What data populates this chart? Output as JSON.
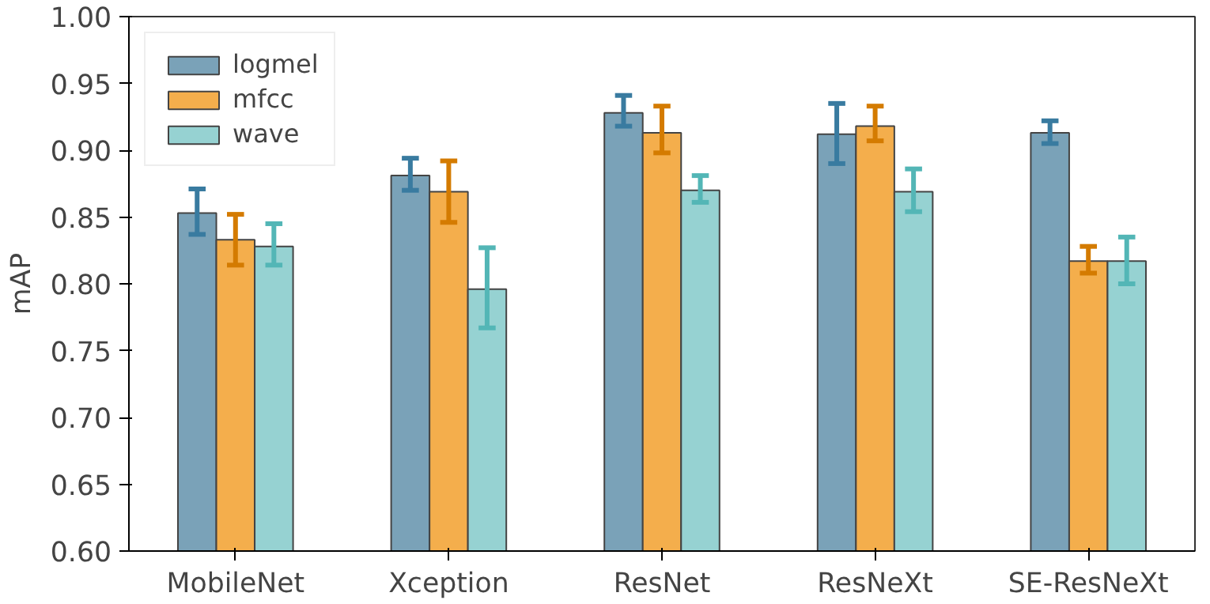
{
  "chart_data": {
    "type": "bar",
    "ylabel": "mAP",
    "categories": [
      "MobileNet",
      "Xception",
      "ResNet",
      "ResNeXt",
      "SE-ResNeXt"
    ],
    "series": [
      {
        "name": "logmel",
        "color": "#7aa2b8",
        "values": [
          0.853,
          0.881,
          0.928,
          0.912,
          0.913
        ],
        "errors": [
          [
            0.837,
            0.871
          ],
          [
            0.87,
            0.894
          ],
          [
            0.918,
            0.941
          ],
          [
            0.89,
            0.935
          ],
          [
            0.905,
            0.922
          ]
        ]
      },
      {
        "name": "mfcc",
        "color": "#f4ae4c",
        "values": [
          0.833,
          0.869,
          0.913,
          0.918,
          0.817
        ],
        "errors": [
          [
            0.814,
            0.852
          ],
          [
            0.846,
            0.892
          ],
          [
            0.898,
            0.933
          ],
          [
            0.907,
            0.933
          ],
          [
            0.808,
            0.828
          ]
        ]
      },
      {
        "name": "wave",
        "color": "#96d2d2",
        "values": [
          0.828,
          0.796,
          0.87,
          0.869,
          0.817
        ],
        "errors": [
          [
            0.814,
            0.845
          ],
          [
            0.767,
            0.827
          ],
          [
            0.861,
            0.881
          ],
          [
            0.854,
            0.886
          ],
          [
            0.8,
            0.835
          ]
        ]
      }
    ],
    "ylim": [
      0.6,
      1.0
    ],
    "yticks": [
      {
        "value": 0.6,
        "label": "0.60"
      },
      0.65,
      {
        "value": 0.7,
        "label": "0.70"
      },
      0.75,
      {
        "value": 0.8,
        "label": "0.80"
      },
      0.85,
      {
        "value": 0.9,
        "label": "0.90"
      },
      0.95,
      {
        "value": 1.0,
        "label": "1.00"
      }
    ],
    "grid": false,
    "legend": "top left"
  }
}
